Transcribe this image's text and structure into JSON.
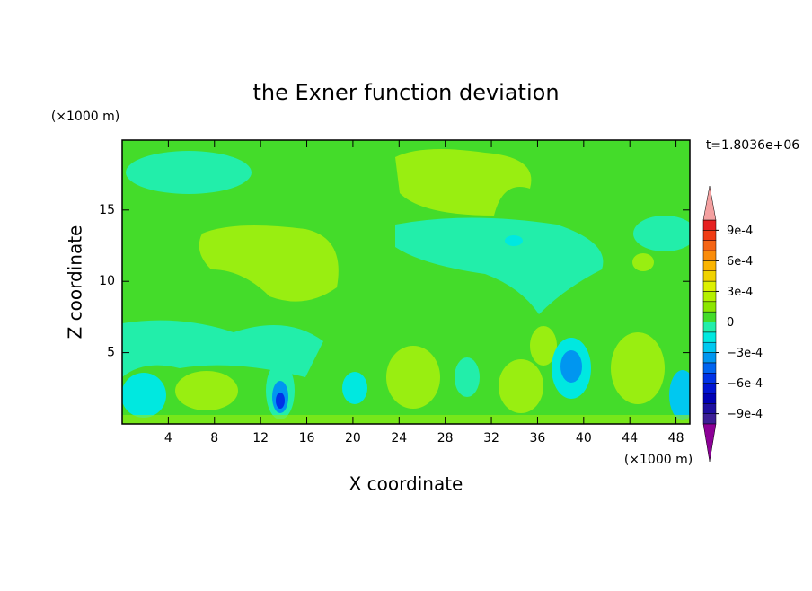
{
  "chart_data": {
    "type": "contour",
    "title": "the Exner function deviation",
    "xlabel": "X coordinate",
    "ylabel": "Z coordinate",
    "x_unit": "(×1000 m)",
    "y_unit": "(×1000 m)",
    "annotation": "t=1.8036e+06",
    "xlim": [
      0,
      49.2
    ],
    "ylim": [
      0,
      19.9
    ],
    "xticks": [
      4,
      8,
      12,
      16,
      20,
      24,
      28,
      32,
      36,
      40,
      44,
      48
    ],
    "yticks": [
      5,
      10,
      15
    ],
    "colorbar": {
      "lim": [
        -0.001,
        0.001
      ],
      "colors": [
        "#3c1e96",
        "#1e0fa0",
        "#0000b4",
        "#0014d2",
        "#0032e6",
        "#0064f0",
        "#0096f0",
        "#00c8f0",
        "#00e8e0",
        "#22eeaa",
        "#44dc2a",
        "#8ce600",
        "#b4f000",
        "#dcf000",
        "#f0d200",
        "#fab400",
        "#fa8c0a",
        "#f56414",
        "#f03c14",
        "#e62020"
      ],
      "under_color": "#8c0096",
      "over_color": "#f4a0a0",
      "ticks": [
        {
          "value": 0.0009,
          "label": "9e-4"
        },
        {
          "value": 0.0006,
          "label": "6e-4"
        },
        {
          "value": 0.0003,
          "label": "3e-4"
        },
        0,
        {
          "value": -0.0003,
          "label": "−3e-4"
        },
        {
          "value": -0.0006,
          "label": "−6e-4"
        },
        {
          "value": -0.0009,
          "label": "−9e-4"
        }
      ]
    }
  }
}
